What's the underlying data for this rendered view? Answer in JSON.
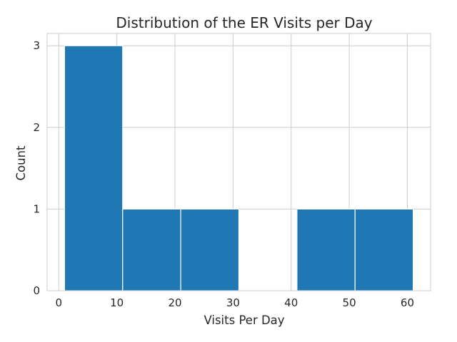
{
  "chart_data": {
    "type": "bar",
    "title": "Distribution of the ER Visits per Day",
    "xlabel": "Visits Per Day",
    "ylabel": "Count",
    "bins": [
      {
        "start": 1,
        "end": 11,
        "count": 3
      },
      {
        "start": 11,
        "end": 21,
        "count": 1
      },
      {
        "start": 21,
        "end": 31,
        "count": 1
      },
      {
        "start": 31,
        "end": 41,
        "count": 0
      },
      {
        "start": 41,
        "end": 51,
        "count": 1
      },
      {
        "start": 51,
        "end": 61,
        "count": 1
      }
    ],
    "xticks": [
      0,
      10,
      20,
      30,
      40,
      50,
      60
    ],
    "yticks": [
      0,
      1,
      2,
      3
    ],
    "xlim": [
      -2,
      64
    ],
    "ylim": [
      0,
      3.15
    ],
    "grid": true,
    "colors": {
      "bar": "#1f77b4",
      "bar_edge": "#ffffff",
      "grid": "#cccccc",
      "frame": "#cccccc"
    }
  }
}
